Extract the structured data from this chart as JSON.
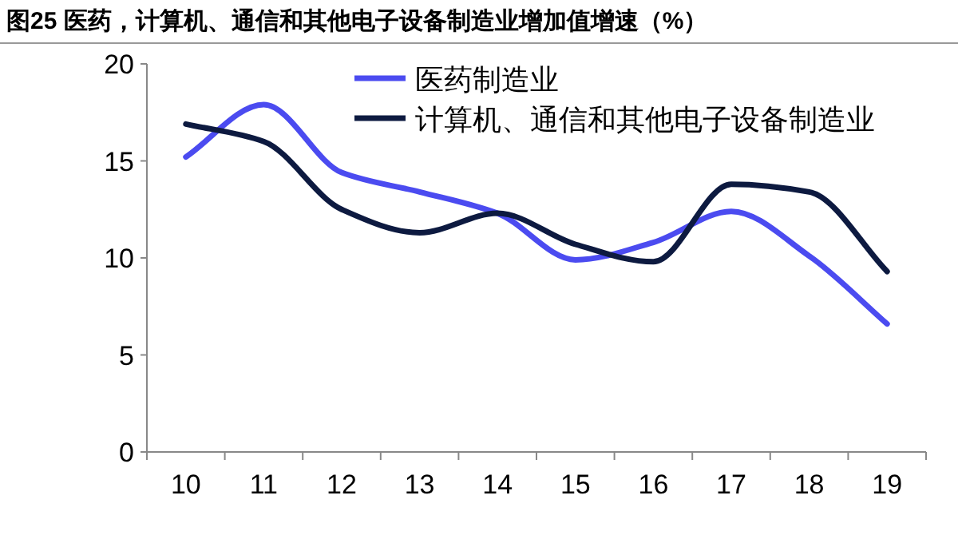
{
  "chart_data": {
    "type": "line",
    "title": "图25 医药，计算机、通信和其他电子设备制造业增加值增速（%）",
    "categories": [
      "10",
      "11",
      "12",
      "13",
      "14",
      "15",
      "16",
      "17",
      "18",
      "19"
    ],
    "series": [
      {
        "name": "医药制造业",
        "color": "#4b4bf0",
        "values": [
          15.2,
          17.9,
          14.4,
          13.4,
          12.3,
          9.9,
          10.8,
          12.4,
          10.1,
          6.6
        ]
      },
      {
        "name": "计算机、通信和其他电子设备制造业",
        "color": "#0d1a40",
        "values": [
          16.9,
          16.0,
          12.5,
          11.3,
          12.3,
          10.7,
          9.8,
          13.8,
          13.4,
          9.3
        ]
      }
    ],
    "ylim": [
      0,
      20
    ],
    "yticks": [
      0,
      5,
      10,
      15,
      20
    ],
    "grid": false,
    "legend": "top",
    "marker": "none",
    "line_style": "solid"
  }
}
